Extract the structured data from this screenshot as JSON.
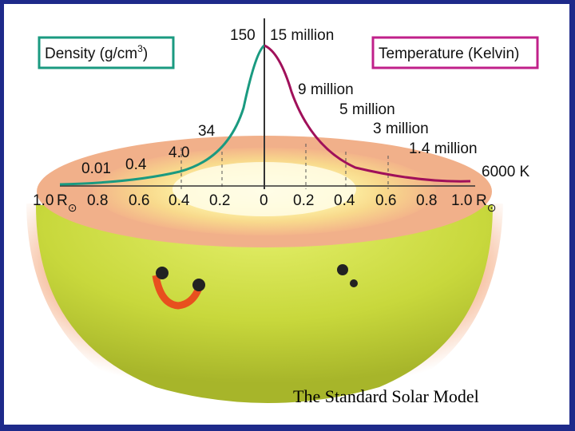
{
  "density_label": "Density (g/cm",
  "density_unit_sup": "3",
  "density_label_close": ")",
  "temperature_label": "Temperature (Kelvin)",
  "density_values": [
    "150",
    "34",
    "4.0",
    "0.4",
    "0.01"
  ],
  "temperature_values": [
    "15 million",
    "9 million",
    "5 million",
    "3 million",
    "1.4 million",
    "6000 K"
  ],
  "radius_axis_left": [
    "1.0",
    "0.8",
    "0.6",
    "0.4",
    "0.2"
  ],
  "radius_center": "0",
  "radius_axis_right": [
    "0.2",
    "0.4",
    "0.6",
    "0.8",
    "1.0"
  ],
  "solar_radius_symbol": "R",
  "solar_radius_subscript": "⊙",
  "caption": "The Standard Solar Model",
  "colors": {
    "frame": "#1e2a8a",
    "density_curve": "#1a9a80",
    "temperature_curve": "#a0105a",
    "density_box": "#1a9a80",
    "temperature_box": "#c0208a"
  }
}
